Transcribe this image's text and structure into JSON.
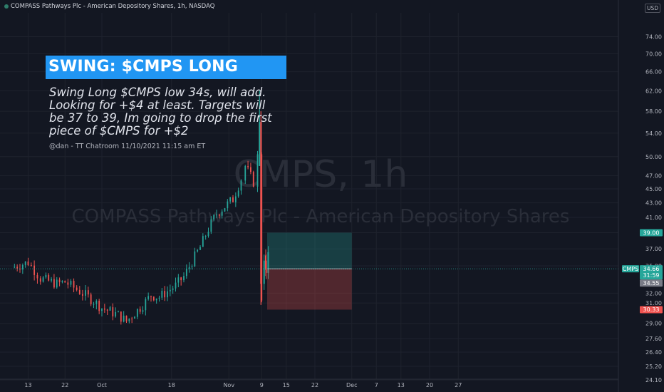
{
  "header": {
    "title": "COMPASS Pathways Plc - American Depository Shares, 1h, NASDAQ",
    "currency": "USD"
  },
  "annotation": {
    "banner": "SWING: $CMPS LONG",
    "note_lines": [
      "Swing Long $CMPS low 34s, will add.",
      "Looking for +$4 at least.  Targets will",
      "be 37 to 39, Im going to drop the first",
      "piece of $CMPS for +$2"
    ],
    "byline": "@dan - TT Chatroom 11/10/2021 11:15 am ET"
  },
  "colors": {
    "background": "#131722",
    "grid": "#1e222d",
    "candle_up": "#26a69a",
    "candle_down": "#ef5350",
    "banner": "#2196f3",
    "target_zone": "#26a69a",
    "stop_zone": "#ef5350"
  },
  "chart_data": {
    "type": "candlestick",
    "symbol": "CMPS",
    "interval": "1h",
    "watermark_symbol": "CMPS, 1h",
    "watermark_name": "COMPASS Pathways Plc - American Depository Shares",
    "y_scale": "log",
    "ylim": [
      23.5,
      80
    ],
    "y_ticks": [
      74.0,
      70.0,
      66.0,
      62.0,
      58.0,
      54.0,
      50.0,
      47.0,
      45.0,
      43.0,
      41.0,
      39.0,
      37.0,
      35.0,
      32.0,
      31.0,
      29.0,
      27.6,
      26.4,
      25.2,
      24.1
    ],
    "x_ticks": [
      "13",
      "22",
      "Oct",
      "18",
      "Nov",
      "9",
      "15",
      "22",
      "Dec",
      "7",
      "13",
      "20",
      "27"
    ],
    "price_path": [
      [
        "Sep 9",
        34.8
      ],
      [
        "Sep 13",
        35.4
      ],
      [
        "Sep 16",
        33.6
      ],
      [
        "Sep 20",
        33.0
      ],
      [
        "Sep 22",
        33.2
      ],
      [
        "Sep 27",
        31.8
      ],
      [
        "Sep 29",
        31.2
      ],
      [
        "Oct 1",
        30.5
      ],
      [
        "Oct 5",
        29.8
      ],
      [
        "Oct 7",
        29.2
      ],
      [
        "Oct 11",
        30.8
      ],
      [
        "Oct 13",
        31.8
      ],
      [
        "Oct 15",
        31.6
      ],
      [
        "Oct 19",
        32.8
      ],
      [
        "Oct 21",
        33.8
      ],
      [
        "Oct 25",
        37.2
      ],
      [
        "Oct 27",
        39.5
      ],
      [
        "Oct 29",
        41.5
      ],
      [
        "Nov 2",
        43.5
      ],
      [
        "Nov 4",
        46.5
      ],
      [
        "Nov 5",
        48.5
      ],
      [
        "Nov 7",
        46.0
      ],
      [
        "Nov 8",
        50.0
      ],
      [
        "Nov 9",
        31.5
      ],
      [
        "Nov 10",
        34.55
      ]
    ],
    "spike_high": 62.0,
    "spike_low": 30.8,
    "position": {
      "type": "long",
      "entry": 34.66,
      "target": 39.0,
      "stop": 30.33,
      "start": "Nov 10",
      "end": "Dec"
    },
    "price_labels": [
      {
        "text": "39.00",
        "value": 39.0,
        "color": "#26a69a"
      },
      {
        "text": "CMPS",
        "value": 34.66,
        "color": "#26a69a"
      },
      {
        "text": "34.66",
        "value": 34.66,
        "color": "#26a69a"
      },
      {
        "text": "31:59",
        "value": 34.66,
        "color": "#26a69a"
      },
      {
        "text": "34.55",
        "value": 34.55,
        "color": "#787b86"
      },
      {
        "text": "30.33",
        "value": 30.33,
        "color": "#ef5350"
      }
    ]
  }
}
